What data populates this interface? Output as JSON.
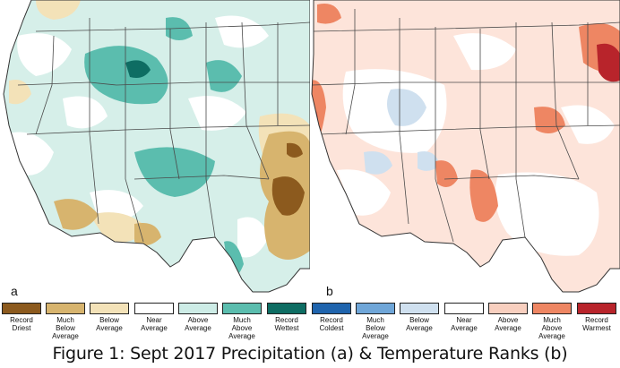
{
  "panels": [
    {
      "letter": "a",
      "variable": "precipitation"
    },
    {
      "letter": "b",
      "variable": "temperature"
    }
  ],
  "legend": [
    {
      "label": "Record\nDriest",
      "color": "#8c5a1e"
    },
    {
      "label": "Much\nBelow\nAverage",
      "color": "#d7b46e"
    },
    {
      "label": "Below\nAverage",
      "color": "#f3e2b8"
    },
    {
      "label": "Near\nAverage",
      "color": "#ffffff"
    },
    {
      "label": "Above\nAverage",
      "color": "#cdece6"
    },
    {
      "label": "Much\nAbove\nAverage",
      "color": "#5bbdae"
    },
    {
      "label": "Record\nWettest",
      "color": "#0e6d63"
    },
    {
      "label": "Record\nColdest",
      "color": "#1f64ad"
    },
    {
      "label": "Much\nBelow\nAverage",
      "color": "#6fa6d8"
    },
    {
      "label": "Below\nAverage",
      "color": "#cfe0ef"
    },
    {
      "label": "Near\nAverage",
      "color": "#ffffff"
    },
    {
      "label": "Above\nAverage",
      "color": "#f8cfbf"
    },
    {
      "label": "Much\nAbove\nAverage",
      "color": "#ee8663"
    },
    {
      "label": "Record\nWarmest",
      "color": "#b8242b"
    }
  ],
  "caption": "Figure 1: Sept 2017 Precipitation (a) & Temperature Ranks (b)"
}
